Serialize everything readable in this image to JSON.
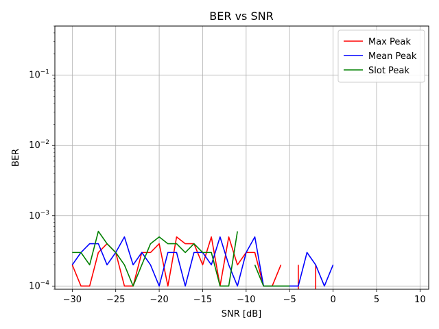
{
  "chart_data": {
    "type": "line",
    "title": "BER vs SNR",
    "xlabel": "SNR [dB]",
    "ylabel": "BER",
    "xlim": [
      -32,
      11
    ],
    "ylim": [
      9e-05,
      0.5
    ],
    "yscale": "log",
    "grid": true,
    "legend_position": "top-right",
    "x_ticks": [
      -30,
      -25,
      -20,
      -15,
      -10,
      -5,
      0,
      5,
      10
    ],
    "x_tick_labels": [
      "−30",
      "−25",
      "−20",
      "−15",
      "−10",
      "−5",
      "0",
      "5",
      "10"
    ],
    "y_ticks": [
      0.0001,
      0.001,
      0.01,
      0.1
    ],
    "y_tick_labels": [
      {
        "base": "10",
        "exp": "−4"
      },
      {
        "base": "10",
        "exp": "−3"
      },
      {
        "base": "10",
        "exp": "−2"
      },
      {
        "base": "10",
        "exp": "−1"
      }
    ],
    "x": [
      -30,
      -29,
      -28,
      -27,
      -26,
      -25,
      -24,
      -23,
      -22,
      -21,
      -20,
      -19,
      -18,
      -17,
      -16,
      -15,
      -14,
      -13,
      -12,
      -11,
      -10,
      -9,
      -8,
      -7,
      -6,
      -5,
      -4,
      -3,
      -2,
      -1,
      0
    ],
    "series": [
      {
        "name": "Max Peak",
        "color": "#ff0000",
        "values": [
          0.0002,
          0.0001,
          0.0001,
          0.0003,
          0.0004,
          0.0003,
          0.0001,
          0.0001,
          0.0003,
          0.0003,
          0.0004,
          0.0001,
          0.0005,
          0.0004,
          0.0004,
          0.0002,
          0.0005,
          0.0001,
          0.0005,
          0.0002,
          0.0003,
          0.0003,
          0.0001,
          0.0001,
          0.0002,
          null,
          0.0002,
          null,
          0.0002,
          null,
          null
        ]
      },
      {
        "name": "Mean Peak",
        "color": "#0000ff",
        "values": [
          0.0002,
          0.0003,
          0.0004,
          0.0004,
          0.0002,
          0.0003,
          0.0005,
          0.0002,
          0.0003,
          0.0002,
          0.0001,
          0.0003,
          0.0003,
          0.0001,
          0.0003,
          0.0003,
          0.0002,
          0.0005,
          0.0002,
          0.0001,
          0.0003,
          0.0005,
          0.0001,
          0.0001,
          0.0001,
          0.0001,
          0.0001,
          0.0003,
          0.0002,
          0.0001,
          0.0002
        ]
      },
      {
        "name": "Slot Peak",
        "color": "#008000",
        "values": [
          0.0003,
          0.0003,
          0.0002,
          0.0006,
          0.0004,
          0.0003,
          0.0002,
          0.0001,
          0.0002,
          0.0004,
          0.0005,
          0.0004,
          0.0004,
          0.0003,
          0.0004,
          0.0003,
          0.0003,
          0.0001,
          0.0001,
          0.0006,
          null,
          0.0002,
          0.0001,
          0.0001,
          0.0001,
          0.0001,
          null,
          null,
          null,
          null,
          null
        ]
      }
    ]
  }
}
